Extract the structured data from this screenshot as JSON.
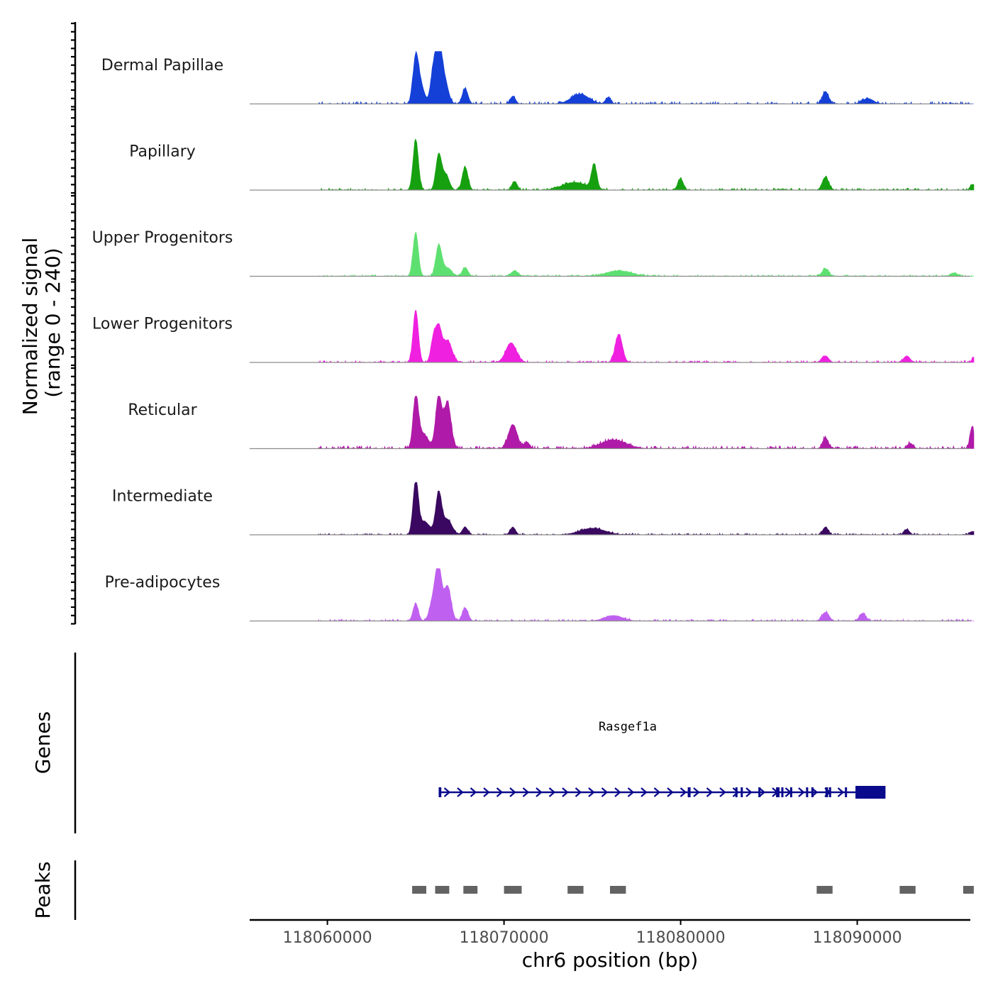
{
  "chart_data": {
    "type": "area",
    "title": "",
    "ylabel": "Normalized signal",
    "ylabel_range": "(range 0 - 240)",
    "ylim": [
      0,
      240
    ],
    "xlabel": "chr6 position (bp)",
    "xlim": [
      118055600,
      118096400
    ],
    "x_ticks": [
      118060000,
      118070000,
      118080000,
      118090000
    ],
    "x_tick_labels": [
      "118060000",
      "118070000",
      "118080000",
      "118090000"
    ],
    "signal_range": [
      118059500,
      118096600
    ],
    "tracks": [
      {
        "name": "Dermal Papillae",
        "color": "#1440d8",
        "baseline": 12,
        "peaks": [
          [
            118065000,
            205,
            160
          ],
          [
            118065300,
            80,
            200
          ],
          [
            118066000,
            150,
            160
          ],
          [
            118066300,
            240,
            160
          ],
          [
            118066600,
            120,
            220
          ],
          [
            118067800,
            70,
            160
          ],
          [
            118070500,
            35,
            150
          ],
          [
            118074300,
            45,
            500
          ],
          [
            118075900,
            30,
            150
          ],
          [
            118088200,
            55,
            180
          ],
          [
            118090600,
            25,
            300
          ]
        ]
      },
      {
        "name": "Papillary",
        "color": "#16a010",
        "baseline": 10,
        "peaks": [
          [
            118065000,
            230,
            150
          ],
          [
            118066300,
            160,
            160
          ],
          [
            118066700,
            70,
            200
          ],
          [
            118067800,
            105,
            160
          ],
          [
            118070600,
            40,
            150
          ],
          [
            118074000,
            35,
            700
          ],
          [
            118075100,
            110,
            150
          ],
          [
            118080000,
            50,
            160
          ],
          [
            118088200,
            60,
            180
          ],
          [
            118096500,
            25,
            120
          ]
        ]
      },
      {
        "name": "Upper Progenitors",
        "color": "#5ee070",
        "baseline": 8,
        "peaks": [
          [
            118065000,
            200,
            150
          ],
          [
            118066300,
            130,
            160
          ],
          [
            118066700,
            40,
            300
          ],
          [
            118067800,
            40,
            160
          ],
          [
            118070600,
            25,
            200
          ],
          [
            118076500,
            25,
            700
          ],
          [
            118088200,
            35,
            180
          ],
          [
            118095500,
            15,
            200
          ]
        ]
      },
      {
        "name": "Lower Progenitors",
        "color": "#f020e0",
        "baseline": 10,
        "peaks": [
          [
            118065000,
            240,
            150
          ],
          [
            118066000,
            100,
            150
          ],
          [
            118066300,
            150,
            170
          ],
          [
            118066800,
            100,
            250
          ],
          [
            118070400,
            90,
            300
          ],
          [
            118076500,
            130,
            200
          ],
          [
            118088200,
            30,
            180
          ],
          [
            118092800,
            30,
            180
          ],
          [
            118096600,
            25,
            100
          ]
        ]
      },
      {
        "name": "Reticular",
        "color": "#b01aa8",
        "baseline": 14,
        "peaks": [
          [
            118065000,
            220,
            150
          ],
          [
            118065400,
            70,
            300
          ],
          [
            118066300,
            240,
            170
          ],
          [
            118066800,
            210,
            200
          ],
          [
            118070500,
            110,
            250
          ],
          [
            118071300,
            30,
            150
          ],
          [
            118076200,
            40,
            700
          ],
          [
            118088200,
            50,
            160
          ],
          [
            118093000,
            25,
            160
          ],
          [
            118096500,
            100,
            120
          ]
        ]
      },
      {
        "name": "Intermediate",
        "color": "#3a0860",
        "baseline": 8,
        "peaks": [
          [
            118065000,
            240,
            150
          ],
          [
            118065500,
            60,
            300
          ],
          [
            118066300,
            190,
            170
          ],
          [
            118066800,
            70,
            250
          ],
          [
            118067800,
            35,
            160
          ],
          [
            118070500,
            35,
            150
          ],
          [
            118075000,
            30,
            700
          ],
          [
            118088200,
            35,
            160
          ],
          [
            118092800,
            25,
            160
          ],
          [
            118096500,
            15,
            120
          ]
        ]
      },
      {
        "name": "Pre-adipocytes",
        "color": "#c060f0",
        "baseline": 10,
        "peaks": [
          [
            118065000,
            80,
            150
          ],
          [
            118066000,
            100,
            200
          ],
          [
            118066300,
            230,
            170
          ],
          [
            118066800,
            160,
            200
          ],
          [
            118067800,
            60,
            160
          ],
          [
            118076200,
            25,
            500
          ],
          [
            118088200,
            40,
            200
          ],
          [
            118090300,
            35,
            180
          ]
        ]
      }
    ],
    "genes_label": "Genes",
    "gene": {
      "name": "Rasgef1a",
      "strand": "+",
      "color": "#0a0a8c",
      "start": 118066300,
      "end": 118091600,
      "exons": [
        [
          118066300,
          118066450
        ],
        [
          118080400,
          118080560
        ],
        [
          118083100,
          118083180
        ],
        [
          118083400,
          118083480
        ],
        [
          118084400,
          118084500
        ],
        [
          118085400,
          118085600
        ],
        [
          118085700,
          118085800
        ],
        [
          118086200,
          118086300
        ],
        [
          118087100,
          118087200
        ],
        [
          118087400,
          118087500
        ],
        [
          118088200,
          118088350
        ],
        [
          118088400,
          118088500
        ],
        [
          118089300,
          118089400
        ],
        [
          118089900,
          118091600
        ]
      ]
    },
    "peaks_label": "Peaks",
    "peak_color": "#636363",
    "peak_regions": [
      [
        118064800,
        118065600
      ],
      [
        118066100,
        118066900
      ],
      [
        118067700,
        118068500
      ],
      [
        118070000,
        118071000
      ],
      [
        118073600,
        118074500
      ],
      [
        118076000,
        118076900
      ],
      [
        118087700,
        118088600
      ],
      [
        118092400,
        118093300
      ],
      [
        118096000,
        118096600
      ]
    ]
  }
}
